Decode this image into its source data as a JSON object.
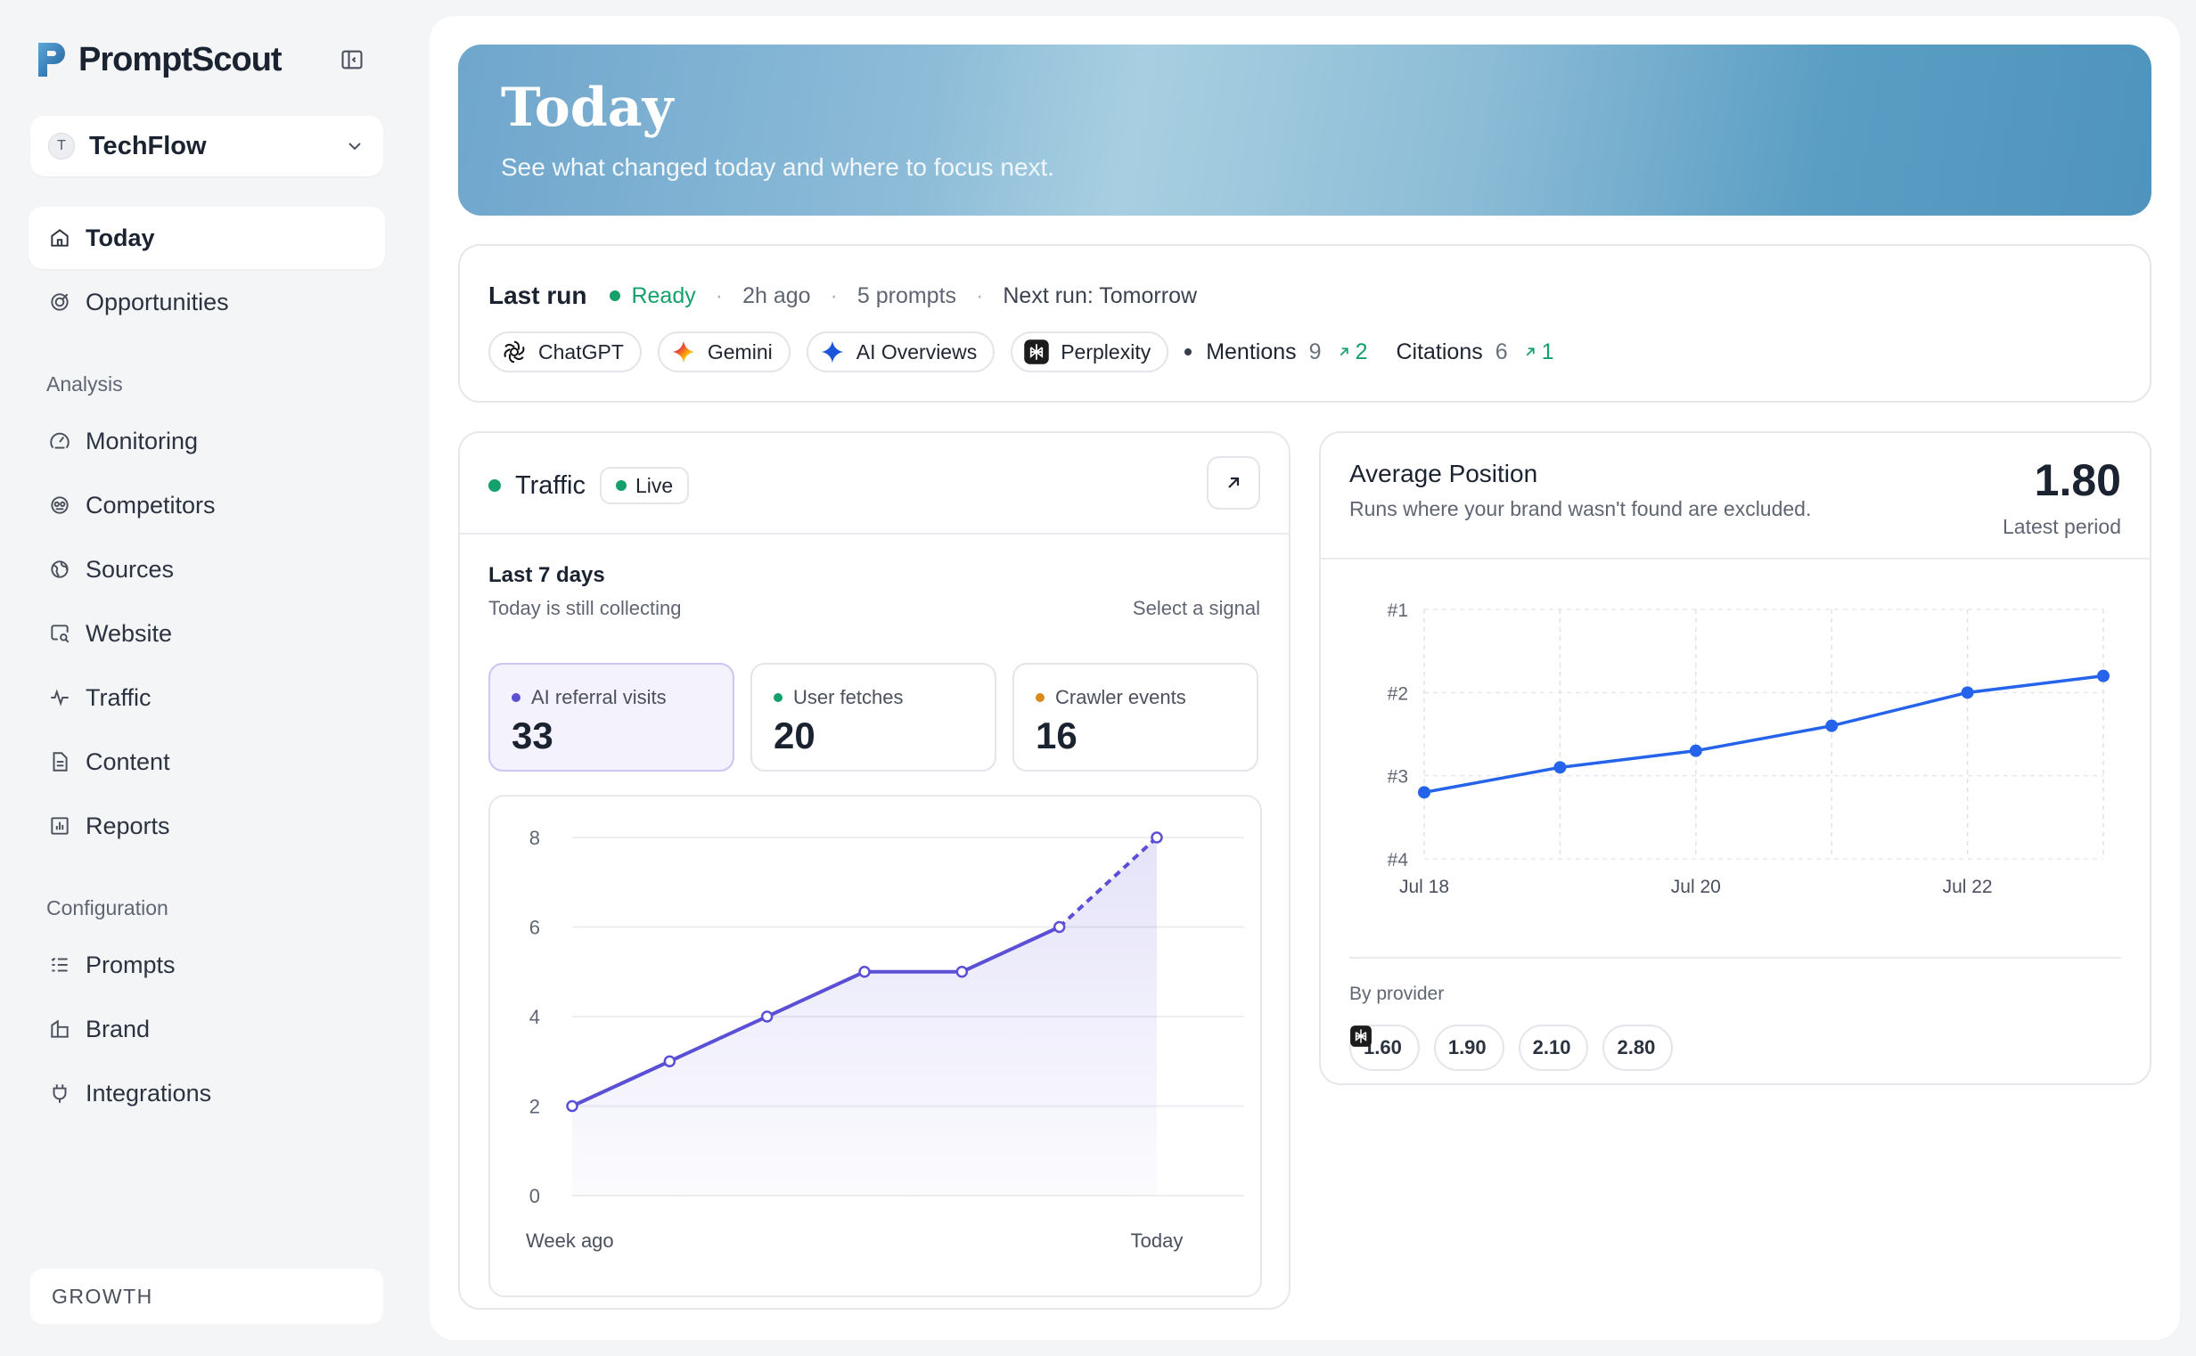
{
  "app": {
    "name": "PromptScout",
    "workspace": {
      "initial": "T",
      "name": "TechFlow"
    },
    "plan": "GROWTH"
  },
  "sidebar": {
    "primary": [
      {
        "label": "Today",
        "icon": "home-icon",
        "active": true
      },
      {
        "label": "Opportunities",
        "icon": "target-icon"
      }
    ],
    "analysis_label": "Analysis",
    "analysis": [
      {
        "label": "Monitoring",
        "icon": "monitoring-icon"
      },
      {
        "label": "Competitors",
        "icon": "competitors-icon"
      },
      {
        "label": "Sources",
        "icon": "globe-icon"
      },
      {
        "label": "Website",
        "icon": "website-search-icon"
      },
      {
        "label": "Traffic",
        "icon": "activity-icon"
      },
      {
        "label": "Content",
        "icon": "document-icon"
      },
      {
        "label": "Reports",
        "icon": "chart-icon"
      }
    ],
    "config_label": "Configuration",
    "configuration": [
      {
        "label": "Prompts",
        "icon": "list-icon"
      },
      {
        "label": "Brand",
        "icon": "building-icon"
      },
      {
        "label": "Integrations",
        "icon": "plug-icon"
      }
    ]
  },
  "hero": {
    "title": "Today",
    "subtitle": "See what changed today and where to focus next."
  },
  "last_run": {
    "title": "Last run",
    "status": "Ready",
    "age": "2h ago",
    "prompts": "5 prompts",
    "next_run": "Next run: Tomorrow",
    "providers": [
      "ChatGPT",
      "Gemini",
      "AI Overviews",
      "Perplexity"
    ],
    "mentions": {
      "label": "Mentions",
      "value": "9",
      "delta": "2"
    },
    "citations": {
      "label": "Citations",
      "value": "6",
      "delta": "1"
    }
  },
  "traffic": {
    "title": "Traffic",
    "badge": "Live",
    "range": "Last 7 days",
    "note": "Today is still collecting",
    "select_hint": "Select a signal",
    "signals": [
      {
        "label": "AI referral visits",
        "value": "33",
        "color": "#5b4fd6",
        "active": true
      },
      {
        "label": "User fetches",
        "value": "20",
        "color": "#14a06a"
      },
      {
        "label": "Crawler events",
        "value": "16",
        "color": "#d98a1c"
      }
    ]
  },
  "average_position": {
    "title": "Average Position",
    "subtitle": "Runs where your brand wasn't found are excluded.",
    "value": "1.80",
    "caption": "Latest period",
    "by_provider_label": "By provider",
    "by_provider": [
      {
        "provider": "chatgpt",
        "value": "1.60"
      },
      {
        "provider": "gemini",
        "value": "1.90"
      },
      {
        "provider": "ai-overviews",
        "value": "2.10"
      },
      {
        "provider": "perplexity",
        "value": "2.80"
      }
    ]
  },
  "chart_data": [
    {
      "type": "area",
      "title": "",
      "series": [
        {
          "name": "AI referral visits",
          "values": [
            2,
            3,
            4,
            5,
            5,
            6,
            8
          ]
        }
      ],
      "x": [
        "Week ago",
        "",
        "",
        "",
        "",
        "",
        "Today"
      ],
      "xticks": [
        "Week ago",
        "Today"
      ],
      "yticks": [
        0,
        2,
        4,
        6,
        8
      ],
      "ylim": [
        0,
        8
      ],
      "last_point_partial": true,
      "color": "#5b4fd6"
    },
    {
      "type": "line",
      "title": "Average Position",
      "x": [
        "Jul 18",
        "Jul 19",
        "Jul 20",
        "Jul 21",
        "Jul 22",
        "Jul 23"
      ],
      "xticks": [
        "Jul 18",
        "Jul 20",
        "Jul 22"
      ],
      "series": [
        {
          "values": [
            3.2,
            2.9,
            2.7,
            2.4,
            2.0,
            1.8
          ]
        }
      ],
      "yticks": [
        "#1",
        "#2",
        "#3",
        "#4"
      ],
      "ylim": [
        4,
        1
      ],
      "color": "#2563eb"
    }
  ]
}
